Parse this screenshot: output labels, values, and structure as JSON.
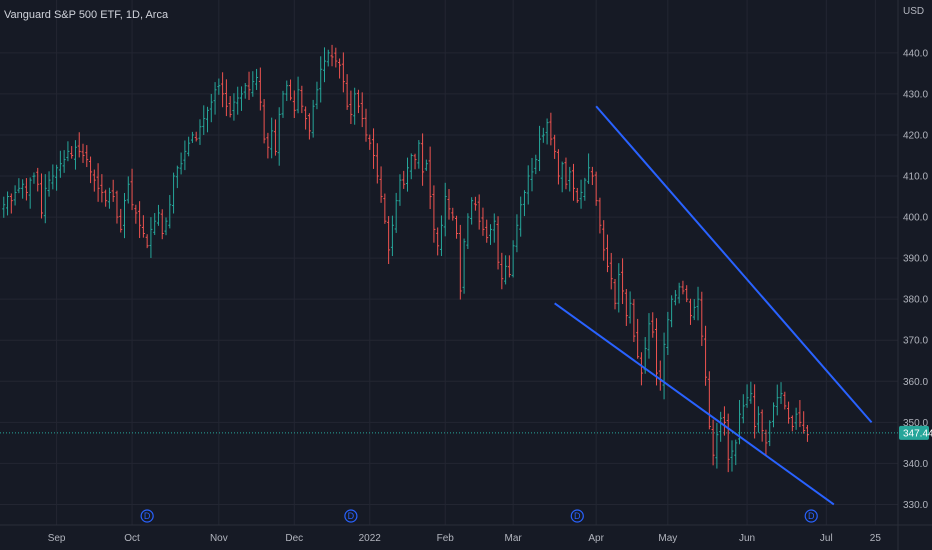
{
  "header": {
    "title": "Vanguard S&P 500 ETF, 1D, Arca"
  },
  "axis": {
    "currency": "USD"
  },
  "chart_data": {
    "type": "ohlc",
    "title": "Vanguard S&P 500 ETF, 1D, Arca",
    "ylim": [
      325,
      448
    ],
    "y_ticks": [
      330,
      340,
      350,
      360,
      370,
      380,
      390,
      400,
      410,
      420,
      430,
      440
    ],
    "x_ticks": [
      {
        "label": "Sep",
        "t": 14
      },
      {
        "label": "Oct",
        "t": 34
      },
      {
        "label": "Nov",
        "t": 57
      },
      {
        "label": "Dec",
        "t": 77
      },
      {
        "label": "2022",
        "t": 97
      },
      {
        "label": "Feb",
        "t": 117
      },
      {
        "label": "Mar",
        "t": 135
      },
      {
        "label": "Apr",
        "t": 157
      },
      {
        "label": "May",
        "t": 176
      },
      {
        "label": "Jun",
        "t": 197
      },
      {
        "label": "Jul",
        "t": 218
      },
      {
        "label": "25",
        "t": 231
      }
    ],
    "t_range": [
      -1,
      237
    ],
    "last_price": 347.44,
    "dividends": [
      {
        "label": "D",
        "t": 38
      },
      {
        "label": "D",
        "t": 92
      },
      {
        "label": "D",
        "t": 152
      },
      {
        "label": "D",
        "t": 214
      }
    ],
    "trendlines": [
      {
        "from": [
          157,
          427
        ],
        "to": [
          230,
          350
        ]
      },
      {
        "from": [
          146,
          379
        ],
        "to": [
          220,
          330
        ]
      }
    ],
    "up_color": "#26a69a",
    "down_color": "#ef5350",
    "closes": [
      403,
      405,
      404,
      406,
      407,
      408,
      406,
      409,
      410,
      408,
      401,
      407,
      409,
      410,
      412,
      413,
      414,
      416,
      415,
      417,
      416,
      415,
      414,
      411,
      409,
      407,
      406,
      404,
      406,
      405,
      400,
      397,
      404,
      408,
      403,
      401,
      398,
      396,
      393,
      397,
      399,
      401,
      396,
      399,
      403,
      410,
      412,
      413,
      416,
      418,
      420,
      419,
      422,
      424,
      426,
      428,
      431,
      432,
      430,
      427,
      425,
      428,
      429,
      430,
      432,
      431,
      433,
      434,
      428,
      419,
      417,
      421,
      416,
      425,
      430,
      432,
      429,
      426,
      431,
      427,
      424,
      421,
      427,
      431,
      436,
      438,
      440,
      439,
      438,
      437,
      433,
      427,
      425,
      430,
      427,
      424,
      420,
      418,
      415,
      410,
      405,
      399,
      392,
      398,
      404,
      409,
      408,
      412,
      415,
      414,
      418,
      411,
      413,
      405,
      397,
      393,
      398,
      405,
      402,
      400,
      396,
      382,
      394,
      400,
      404,
      403,
      399,
      397,
      395,
      397,
      399,
      389,
      385,
      388,
      386,
      393,
      398,
      403,
      406,
      410,
      411,
      414,
      419,
      420,
      423,
      419,
      416,
      410,
      413,
      408,
      411,
      407,
      404,
      406,
      409,
      412,
      410,
      404,
      398,
      392,
      388,
      385,
      379,
      386,
      382,
      376,
      379,
      371,
      366,
      362,
      368,
      374,
      372,
      362,
      360,
      369,
      375,
      380,
      381,
      383,
      382,
      380,
      376,
      378,
      380,
      371,
      361,
      349,
      342,
      347,
      351,
      350,
      341,
      343,
      345,
      352,
      354,
      356,
      357,
      349,
      352,
      348,
      345,
      350,
      354,
      356,
      357,
      354,
      351,
      349,
      352,
      350,
      348,
      347
    ]
  }
}
